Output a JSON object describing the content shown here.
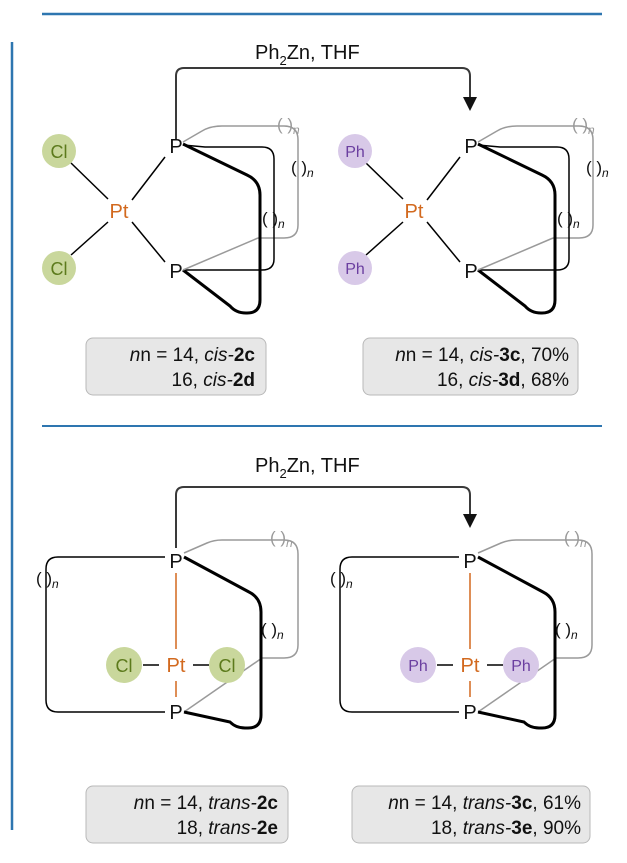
{
  "reagent": {
    "ph": "Ph",
    "sub": "2",
    "rest": "Zn, THF"
  },
  "atoms": {
    "P": "P",
    "Pt": "Pt",
    "Cl": "Cl",
    "Ph": "Ph"
  },
  "loop": {
    "paren": "( )",
    "n": "n"
  },
  "panels": {
    "cis_sm": {
      "line1": {
        "pre": "n = 14, ",
        "stereo": "cis-",
        "num": "2c",
        "yield": ""
      },
      "line2": {
        "pre": "16, ",
        "stereo": "cis-",
        "num": "2d",
        "yield": ""
      }
    },
    "cis_prod": {
      "line1": {
        "pre": "n = 14, ",
        "stereo": "cis-",
        "num": "3c",
        "yield": ", 70%"
      },
      "line2": {
        "pre": "16, ",
        "stereo": "cis-",
        "num": "3d",
        "yield": ", 68%"
      }
    },
    "trans_sm": {
      "line1": {
        "pre": "n = 14, ",
        "stereo": "trans-",
        "num": "2c",
        "yield": ""
      },
      "line2": {
        "pre": "18, ",
        "stereo": "trans-",
        "num": "2e",
        "yield": ""
      }
    },
    "trans_prod": {
      "line1": {
        "pre": "n = 14, ",
        "stereo": "trans-",
        "num": "3c",
        "yield": ", 61%"
      },
      "line2": {
        "pre": "18, ",
        "stereo": "trans-",
        "num": "3e",
        "yield": ", 90%"
      }
    }
  },
  "colors": {
    "rule": "#2e76b0",
    "pt": "#d2691e",
    "cl_fill": "#c9d79c",
    "cl_text": "#5c7a1c",
    "ph_fill": "#d8c9e8",
    "ph_text": "#6b3fa0",
    "bond": "#000000",
    "faint": "#9a9a9a",
    "box": "#e7e7e7"
  }
}
